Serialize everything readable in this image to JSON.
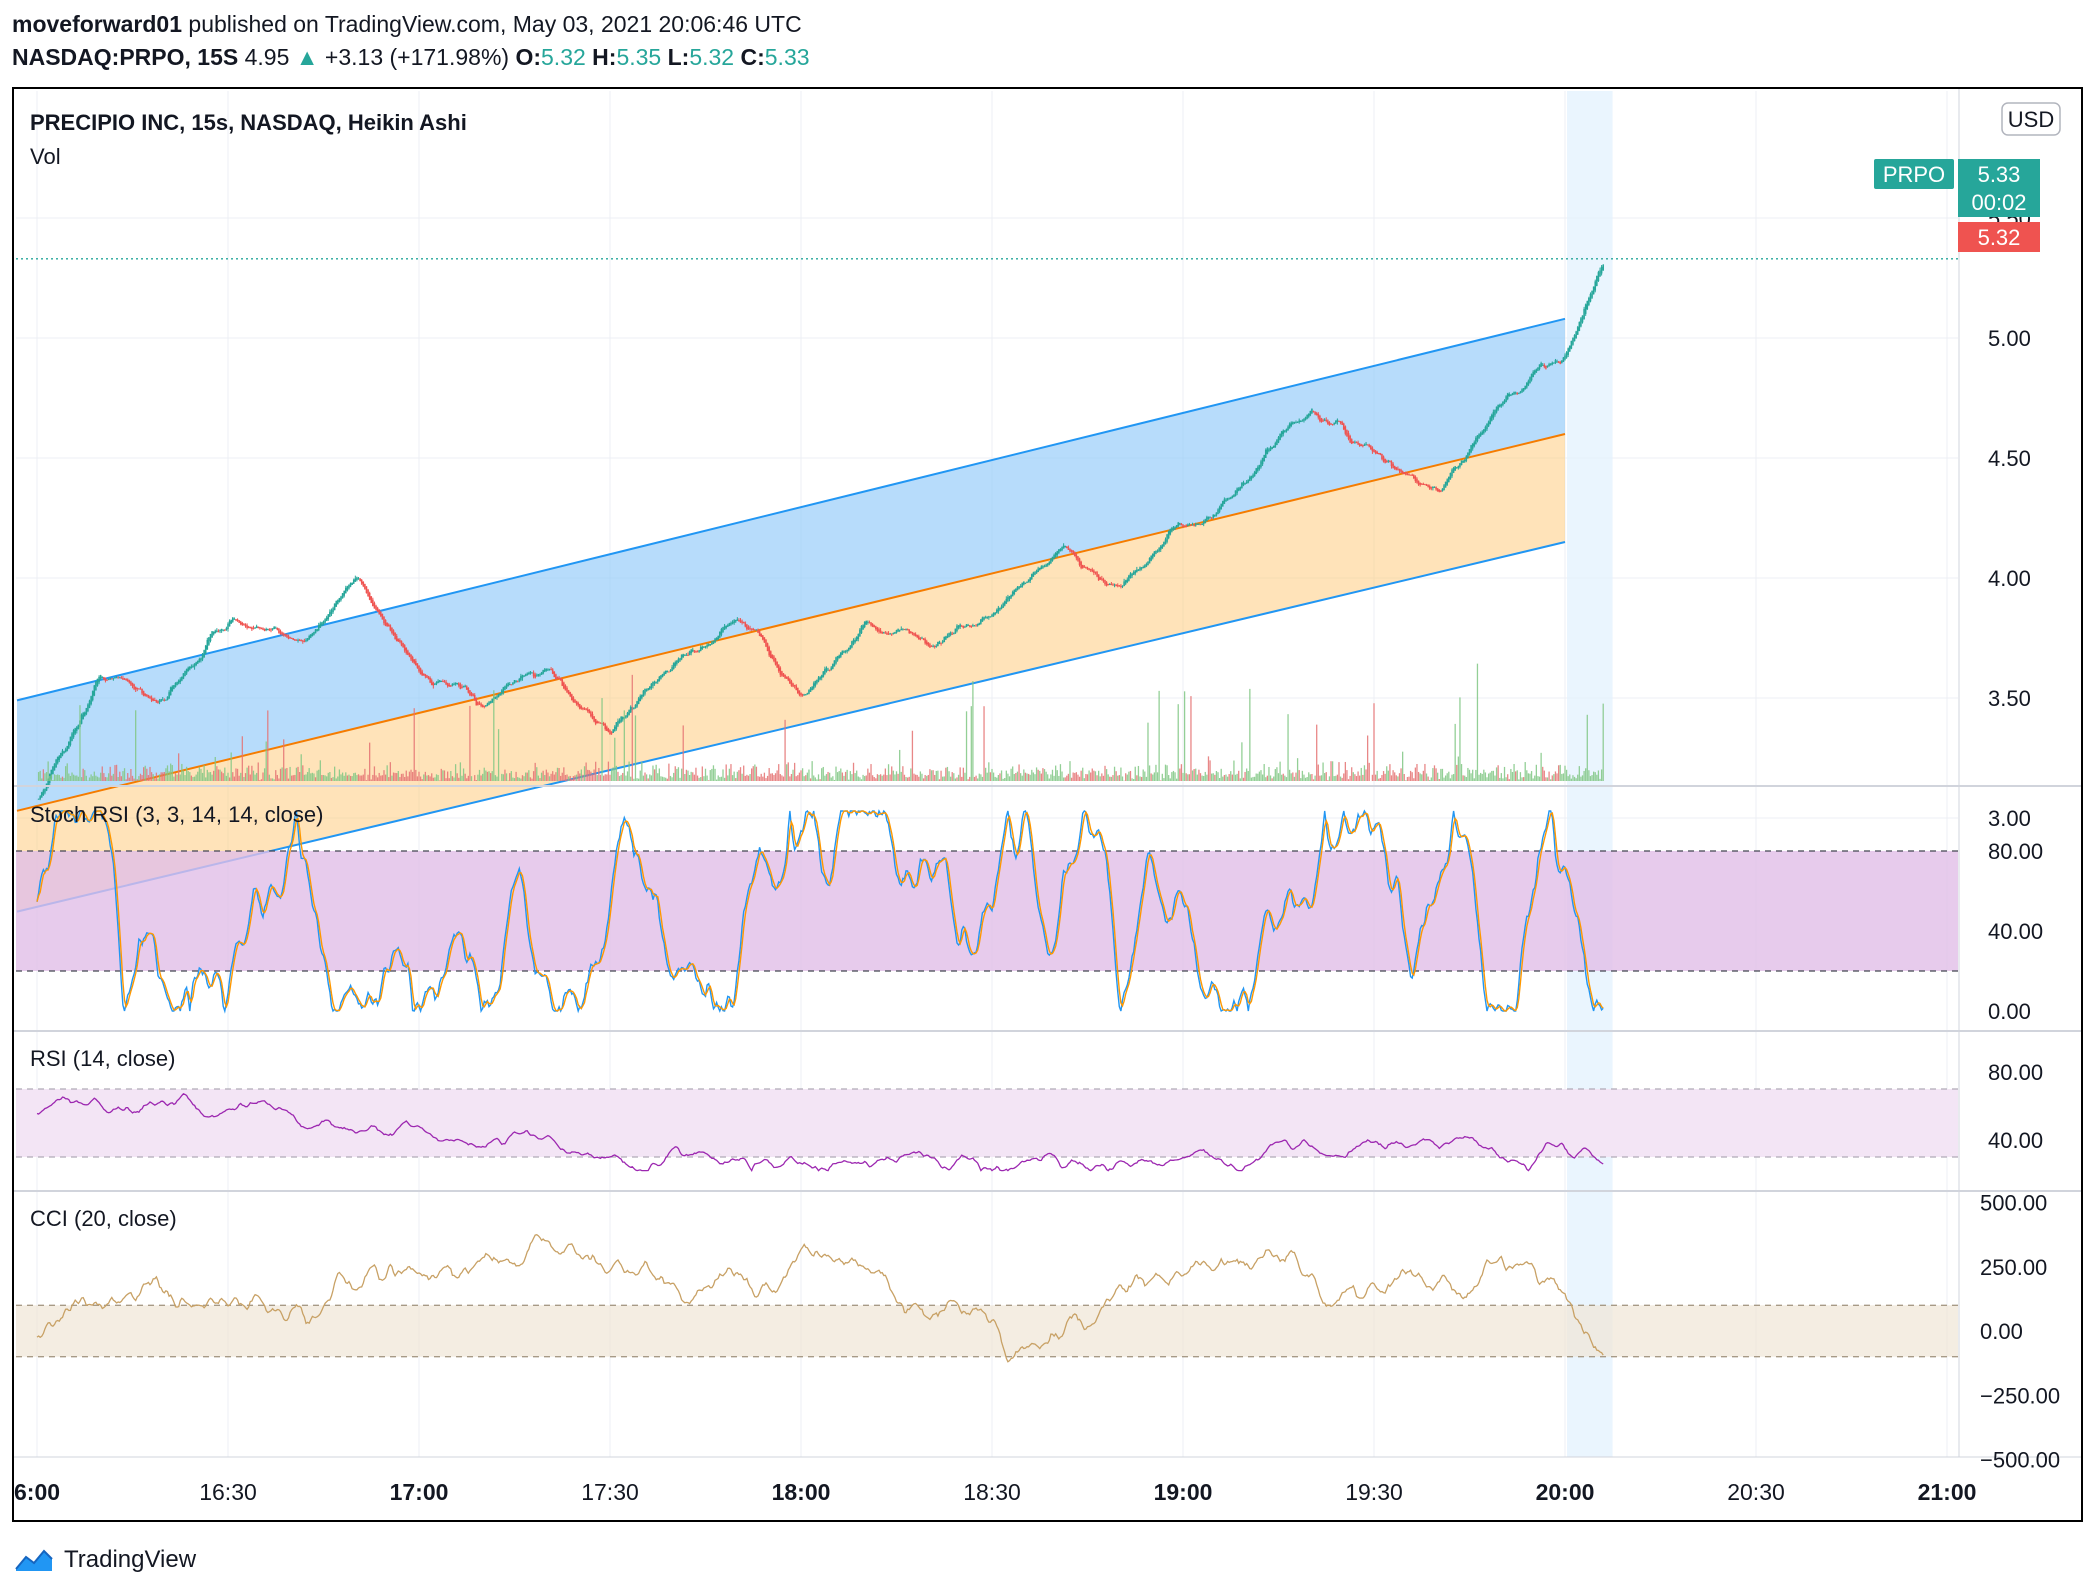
{
  "header": {
    "line1_user": "moveforward01",
    "line1_rest": "published on TradingView.com, May 03, 2021 20:06:46 UTC",
    "symbol": "NASDAQ:PRPO, 15S",
    "price": "4.95",
    "change": "+3.13 (+171.98%)",
    "o_label": "O:",
    "o": "5.32",
    "h_label": "H:",
    "h": "5.35",
    "l_label": "L:",
    "l": "5.32",
    "c_label": "C:",
    "c": "5.33"
  },
  "main_pane": {
    "title": "PRECIPIO INC, 15s, NASDAQ, Heikin Ashi",
    "vol_label": "Vol",
    "currency": "USD",
    "y_ticks": [
      "5.50",
      "5.00",
      "4.50",
      "4.00",
      "3.50",
      "3.00"
    ],
    "y_tick_values": [
      5.5,
      5.0,
      4.5,
      4.0,
      3.5,
      3.0
    ],
    "price_tag_symbol": "PRPO",
    "price_tag_value": "5.33",
    "price_tag_countdown": "00:02",
    "price_tag_secondary": "5.32",
    "colors": {
      "up": "#26a69a",
      "down": "#ef5350",
      "channel_line": "#2196f3",
      "mid_line": "#f57c00",
      "upper_fill": "#90caf9",
      "lower_fill": "#ffcc80"
    }
  },
  "stoch_pane": {
    "title": "Stoch RSI (3, 3, 14, 14, close)",
    "y_ticks": [
      "80.00",
      "40.00",
      "0.00"
    ],
    "band": [
      20,
      80
    ],
    "colors": {
      "k": "#2196f3",
      "d": "#ff9800",
      "band_fill": "#e1bee7"
    }
  },
  "rsi_pane": {
    "title": "RSI (14, close)",
    "y_ticks": [
      "80.00",
      "40.00"
    ],
    "band": [
      30,
      70
    ],
    "colors": {
      "line": "#9c27b0",
      "band_fill": "#f3e5f5"
    }
  },
  "cci_pane": {
    "title": "CCI (20, close)",
    "y_ticks": [
      "500.00",
      "250.00",
      "0.00",
      "−250.00",
      "−500.00"
    ],
    "band": [
      -100,
      100
    ],
    "colors": {
      "line": "#c8a165",
      "band_fill": "#efe6d6"
    }
  },
  "x_axis": {
    "labels": [
      "6:00",
      "16:30",
      "17:00",
      "17:30",
      "18:00",
      "18:30",
      "19:00",
      "19:30",
      "20:00",
      "20:30",
      "21:00"
    ],
    "bold_labels": [
      "6:00",
      "17:00",
      "18:00",
      "19:00",
      "20:00",
      "21:00"
    ]
  },
  "footer": {
    "brand": "TradingView"
  },
  "chart_data": {
    "type": "candlestick",
    "title": "PRECIPIO INC, 15s, NASDAQ, Heikin Ashi",
    "symbol": "NASDAQ:PRPO",
    "interval": "15S",
    "x_range": [
      "16:00",
      "21:10"
    ],
    "price_ylim": [
      2.75,
      5.55
    ],
    "price_path_approx": [
      {
        "t": "16:00",
        "close": 3.08
      },
      {
        "t": "16:10",
        "close": 3.6
      },
      {
        "t": "16:20",
        "close": 3.5
      },
      {
        "t": "16:30",
        "close": 3.85
      },
      {
        "t": "16:40",
        "close": 3.7
      },
      {
        "t": "16:50",
        "close": 4.0
      },
      {
        "t": "17:00",
        "close": 3.62
      },
      {
        "t": "17:10",
        "close": 3.45
      },
      {
        "t": "17:20",
        "close": 3.62
      },
      {
        "t": "17:30",
        "close": 3.36
      },
      {
        "t": "17:40",
        "close": 3.65
      },
      {
        "t": "17:50",
        "close": 3.82
      },
      {
        "t": "18:00",
        "close": 3.5
      },
      {
        "t": "18:10",
        "close": 3.82
      },
      {
        "t": "18:20",
        "close": 3.72
      },
      {
        "t": "18:30",
        "close": 3.85
      },
      {
        "t": "18:40",
        "close": 4.12
      },
      {
        "t": "18:50",
        "close": 3.95
      },
      {
        "t": "19:00",
        "close": 4.2
      },
      {
        "t": "19:10",
        "close": 4.4
      },
      {
        "t": "19:20",
        "close": 4.7
      },
      {
        "t": "19:30",
        "close": 4.5
      },
      {
        "t": "19:40",
        "close": 4.35
      },
      {
        "t": "19:50",
        "close": 4.7
      },
      {
        "t": "20:00",
        "close": 4.95
      },
      {
        "t": "20:06",
        "close": 5.33
      }
    ],
    "regression_channel": {
      "start_time": "16:00",
      "end_time": "20:00",
      "upper": [
        3.49,
        5.08
      ],
      "middle": [
        3.03,
        4.6
      ],
      "lower": [
        2.61,
        4.15
      ]
    },
    "highlight_range": [
      "20:00",
      "20:07"
    ],
    "stoch_rsi": {
      "ylim": [
        0,
        100
      ],
      "band": [
        20,
        80
      ],
      "series": [
        {
          "name": "K"
        },
        {
          "name": "D"
        }
      ]
    },
    "rsi": {
      "ylim": [
        20,
        90
      ],
      "band": [
        30,
        70
      ]
    },
    "cci": {
      "ylim": [
        -550,
        550
      ],
      "band": [
        -100,
        100
      ]
    }
  }
}
